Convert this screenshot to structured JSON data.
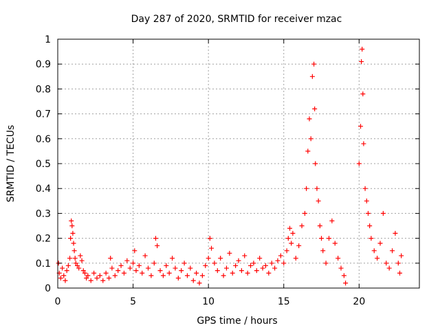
{
  "chart_data": {
    "type": "scatter",
    "title": "Day 287 of 2020, SRMTID for receiver mzac",
    "xlabel": "GPS time / hours",
    "ylabel": "SRMTID / TECUs",
    "xlim": [
      0,
      24
    ],
    "ylim": [
      0,
      1
    ],
    "grid": true,
    "marker": "+",
    "colors": {
      "marker": "#ff0000",
      "grid": "#a0a0a0",
      "axis": "#000000"
    },
    "x_ticks": [
      "0",
      "5",
      "10",
      "15",
      "20"
    ],
    "x_tick_values": [
      0,
      5,
      10,
      15,
      20
    ],
    "y_ticks": [
      "0",
      "0.1",
      "0.2",
      "0.3",
      "0.4",
      "0.5",
      "0.6",
      "0.7",
      "0.8",
      "0.9",
      "1"
    ],
    "y_tick_values": [
      0,
      0.1,
      0.2,
      0.3,
      0.4,
      0.5,
      0.6,
      0.7,
      0.8,
      0.9,
      1
    ],
    "series": [
      {
        "name": "SRMTID",
        "points": [
          [
            0.05,
            0.1
          ],
          [
            0.1,
            0.06
          ],
          [
            0.2,
            0.04
          ],
          [
            0.3,
            0.08
          ],
          [
            0.4,
            0.05
          ],
          [
            0.5,
            0.03
          ],
          [
            0.6,
            0.07
          ],
          [
            0.7,
            0.09
          ],
          [
            0.8,
            0.12
          ],
          [
            0.85,
            0.2
          ],
          [
            0.9,
            0.27
          ],
          [
            0.95,
            0.25
          ],
          [
            1.0,
            0.22
          ],
          [
            1.05,
            0.18
          ],
          [
            1.1,
            0.15
          ],
          [
            1.15,
            0.12
          ],
          [
            1.2,
            0.1
          ],
          [
            1.3,
            0.09
          ],
          [
            1.4,
            0.08
          ],
          [
            1.5,
            0.13
          ],
          [
            1.6,
            0.11
          ],
          [
            1.7,
            0.07
          ],
          [
            1.8,
            0.06
          ],
          [
            1.9,
            0.04
          ],
          [
            2.0,
            0.05
          ],
          [
            2.2,
            0.03
          ],
          [
            2.4,
            0.06
          ],
          [
            2.6,
            0.04
          ],
          [
            2.8,
            0.05
          ],
          [
            3.0,
            0.03
          ],
          [
            3.2,
            0.06
          ],
          [
            3.4,
            0.04
          ],
          [
            3.5,
            0.12
          ],
          [
            3.6,
            0.08
          ],
          [
            3.8,
            0.05
          ],
          [
            4.0,
            0.07
          ],
          [
            4.2,
            0.09
          ],
          [
            4.4,
            0.06
          ],
          [
            4.6,
            0.11
          ],
          [
            4.8,
            0.08
          ],
          [
            5.0,
            0.1
          ],
          [
            5.1,
            0.15
          ],
          [
            5.2,
            0.07
          ],
          [
            5.4,
            0.09
          ],
          [
            5.6,
            0.06
          ],
          [
            5.8,
            0.13
          ],
          [
            6.0,
            0.08
          ],
          [
            6.2,
            0.05
          ],
          [
            6.4,
            0.1
          ],
          [
            6.5,
            0.2
          ],
          [
            6.6,
            0.17
          ],
          [
            6.8,
            0.07
          ],
          [
            7.0,
            0.05
          ],
          [
            7.2,
            0.09
          ],
          [
            7.4,
            0.06
          ],
          [
            7.6,
            0.12
          ],
          [
            7.8,
            0.08
          ],
          [
            8.0,
            0.04
          ],
          [
            8.2,
            0.07
          ],
          [
            8.4,
            0.1
          ],
          [
            8.6,
            0.05
          ],
          [
            8.8,
            0.08
          ],
          [
            9.0,
            0.03
          ],
          [
            9.2,
            0.06
          ],
          [
            9.4,
            0.02
          ],
          [
            9.6,
            0.05
          ],
          [
            9.8,
            0.09
          ],
          [
            10.0,
            0.12
          ],
          [
            10.1,
            0.2
          ],
          [
            10.2,
            0.16
          ],
          [
            10.4,
            0.1
          ],
          [
            10.6,
            0.07
          ],
          [
            10.8,
            0.12
          ],
          [
            11.0,
            0.05
          ],
          [
            11.2,
            0.08
          ],
          [
            11.4,
            0.14
          ],
          [
            11.6,
            0.06
          ],
          [
            11.8,
            0.09
          ],
          [
            12.0,
            0.11
          ],
          [
            12.2,
            0.07
          ],
          [
            12.4,
            0.13
          ],
          [
            12.6,
            0.06
          ],
          [
            12.8,
            0.09
          ],
          [
            13.0,
            0.1
          ],
          [
            13.2,
            0.07
          ],
          [
            13.4,
            0.12
          ],
          [
            13.6,
            0.08
          ],
          [
            13.8,
            0.09
          ],
          [
            14.0,
            0.06
          ],
          [
            14.2,
            0.1
          ],
          [
            14.4,
            0.08
          ],
          [
            14.6,
            0.11
          ],
          [
            14.8,
            0.13
          ],
          [
            15.0,
            0.1
          ],
          [
            15.2,
            0.15
          ],
          [
            15.3,
            0.2
          ],
          [
            15.4,
            0.24
          ],
          [
            15.5,
            0.18
          ],
          [
            15.6,
            0.22
          ],
          [
            15.8,
            0.12
          ],
          [
            16.0,
            0.17
          ],
          [
            16.2,
            0.25
          ],
          [
            16.4,
            0.3
          ],
          [
            16.5,
            0.4
          ],
          [
            16.6,
            0.55
          ],
          [
            16.7,
            0.68
          ],
          [
            16.8,
            0.6
          ],
          [
            16.9,
            0.85
          ],
          [
            17.0,
            0.9
          ],
          [
            17.05,
            0.72
          ],
          [
            17.1,
            0.5
          ],
          [
            17.2,
            0.4
          ],
          [
            17.3,
            0.35
          ],
          [
            17.4,
            0.25
          ],
          [
            17.5,
            0.2
          ],
          [
            17.6,
            0.15
          ],
          [
            17.8,
            0.1
          ],
          [
            18.0,
            0.2
          ],
          [
            18.2,
            0.27
          ],
          [
            18.4,
            0.18
          ],
          [
            18.6,
            0.12
          ],
          [
            18.8,
            0.08
          ],
          [
            19.0,
            0.05
          ],
          [
            19.1,
            0.02
          ],
          [
            20.0,
            0.5
          ],
          [
            20.1,
            0.65
          ],
          [
            20.15,
            0.91
          ],
          [
            20.2,
            0.96
          ],
          [
            20.25,
            0.78
          ],
          [
            20.3,
            0.58
          ],
          [
            20.4,
            0.4
          ],
          [
            20.5,
            0.35
          ],
          [
            20.6,
            0.3
          ],
          [
            20.7,
            0.25
          ],
          [
            20.8,
            0.2
          ],
          [
            21.0,
            0.15
          ],
          [
            21.2,
            0.12
          ],
          [
            21.4,
            0.18
          ],
          [
            21.6,
            0.3
          ],
          [
            21.8,
            0.1
          ],
          [
            22.0,
            0.08
          ],
          [
            22.2,
            0.15
          ],
          [
            22.4,
            0.22
          ],
          [
            22.6,
            0.1
          ],
          [
            22.7,
            0.06
          ],
          [
            22.8,
            0.13
          ]
        ]
      }
    ]
  }
}
